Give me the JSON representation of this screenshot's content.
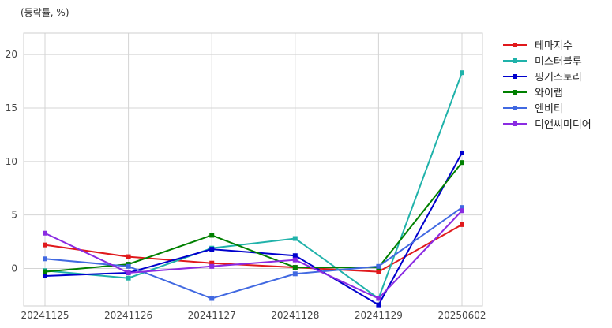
{
  "chart_data": {
    "type": "line",
    "unit_label": "(등락률, %)",
    "categories": [
      "20241125",
      "20241126",
      "20241127",
      "20241128",
      "20241129",
      "20250602"
    ],
    "ylim": [
      -3.5,
      22
    ],
    "yticks": [
      0,
      5,
      10,
      15,
      20
    ],
    "grid": true,
    "legend_position": "outside-right",
    "series": [
      {
        "name": "테마지수",
        "color": "#e0191c",
        "values": [
          2.2,
          1.1,
          0.5,
          0.1,
          -0.3,
          4.1
        ]
      },
      {
        "name": "미스터블루",
        "color": "#20b2aa",
        "values": [
          -0.2,
          -0.9,
          1.9,
          2.8,
          -2.8,
          18.3
        ]
      },
      {
        "name": "핑거스토리",
        "color": "#0000cd",
        "values": [
          -0.7,
          -0.4,
          1.8,
          1.2,
          -3.4,
          10.8
        ]
      },
      {
        "name": "와이랩",
        "color": "#008000",
        "values": [
          -0.3,
          0.4,
          3.1,
          0.1,
          0.1,
          9.9
        ]
      },
      {
        "name": "엔비티",
        "color": "#4169e1",
        "values": [
          0.9,
          0.2,
          -2.8,
          -0.5,
          0.2,
          5.7
        ]
      },
      {
        "name": "디앤씨미디어",
        "color": "#8a2be2",
        "values": [
          3.3,
          -0.4,
          0.2,
          0.8,
          -2.8,
          5.4
        ]
      }
    ]
  }
}
